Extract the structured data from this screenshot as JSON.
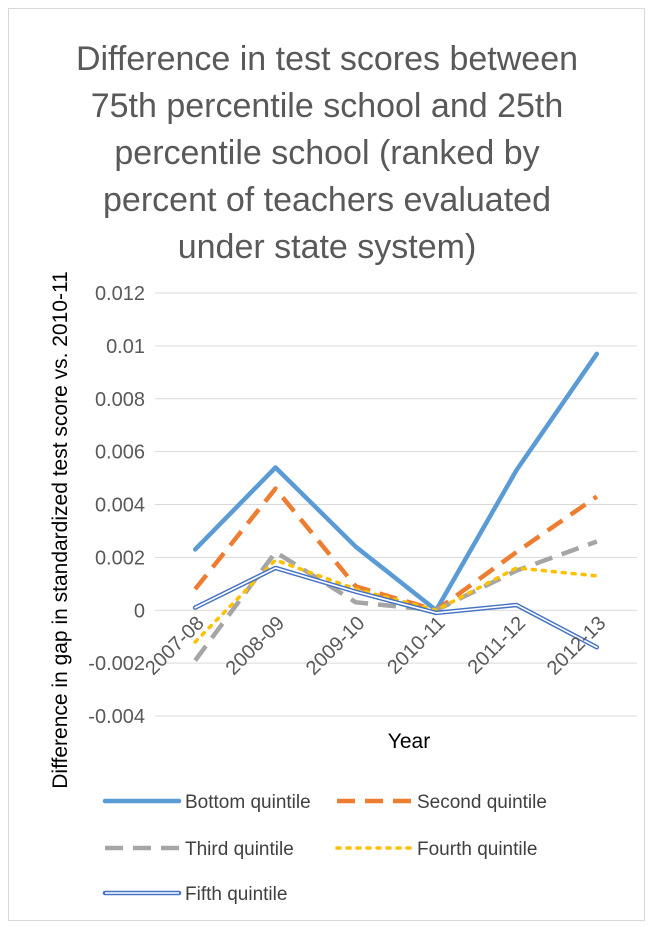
{
  "chart_data": {
    "type": "line",
    "title": "Difference in test scores between 75th percentile school and 25th percentile school (ranked by percent of teachers evaluated under state system)",
    "title_lines": [
      "Difference in test scores between",
      "75th percentile school and 25th",
      "percentile school (ranked by",
      "percent of teachers evaluated",
      "under state system)"
    ],
    "xlabel": "Year",
    "ylabel": "Difference in gap in standardized test score vs. 2010-11",
    "categories": [
      "2007-08",
      "2008-09",
      "2009-10",
      "2010-11",
      "2011-12",
      "2012-13"
    ],
    "ylim": [
      -0.004,
      0.012
    ],
    "yticks": [
      -0.004,
      -0.002,
      0,
      0.002,
      0.004,
      0.006,
      0.008,
      0.01,
      0.012
    ],
    "ytick_labels": [
      "-0.004",
      "-0.002",
      "0",
      "0.002",
      "0.004",
      "0.006",
      "0.008",
      "0.01",
      "0.012"
    ],
    "grid": true,
    "legend_position": "bottom",
    "series": [
      {
        "name": "Bottom quintile",
        "values": [
          0.0023,
          0.0054,
          0.0024,
          0.0,
          0.0053,
          0.0097
        ],
        "color": "#5B9BD5",
        "style": "solid"
      },
      {
        "name": "Second quintile",
        "values": [
          0.0008,
          0.0046,
          0.0009,
          0.0,
          0.0022,
          0.0043
        ],
        "color": "#ED7D31",
        "style": "dashed"
      },
      {
        "name": "Third quintile",
        "values": [
          -0.0019,
          0.0022,
          0.0003,
          0.0,
          0.0015,
          0.0026
        ],
        "color": "#A5A5A5",
        "style": "dashed"
      },
      {
        "name": "Fourth quintile",
        "values": [
          -0.0012,
          0.0019,
          0.0008,
          0.0,
          0.0016,
          0.0013
        ],
        "color": "#FFC000",
        "style": "dotted"
      },
      {
        "name": "Fifth quintile",
        "values": [
          0.0001,
          0.0016,
          0.0007,
          -0.0001,
          0.0002,
          -0.0014
        ],
        "color": "#4472C4",
        "style": "double"
      }
    ]
  }
}
